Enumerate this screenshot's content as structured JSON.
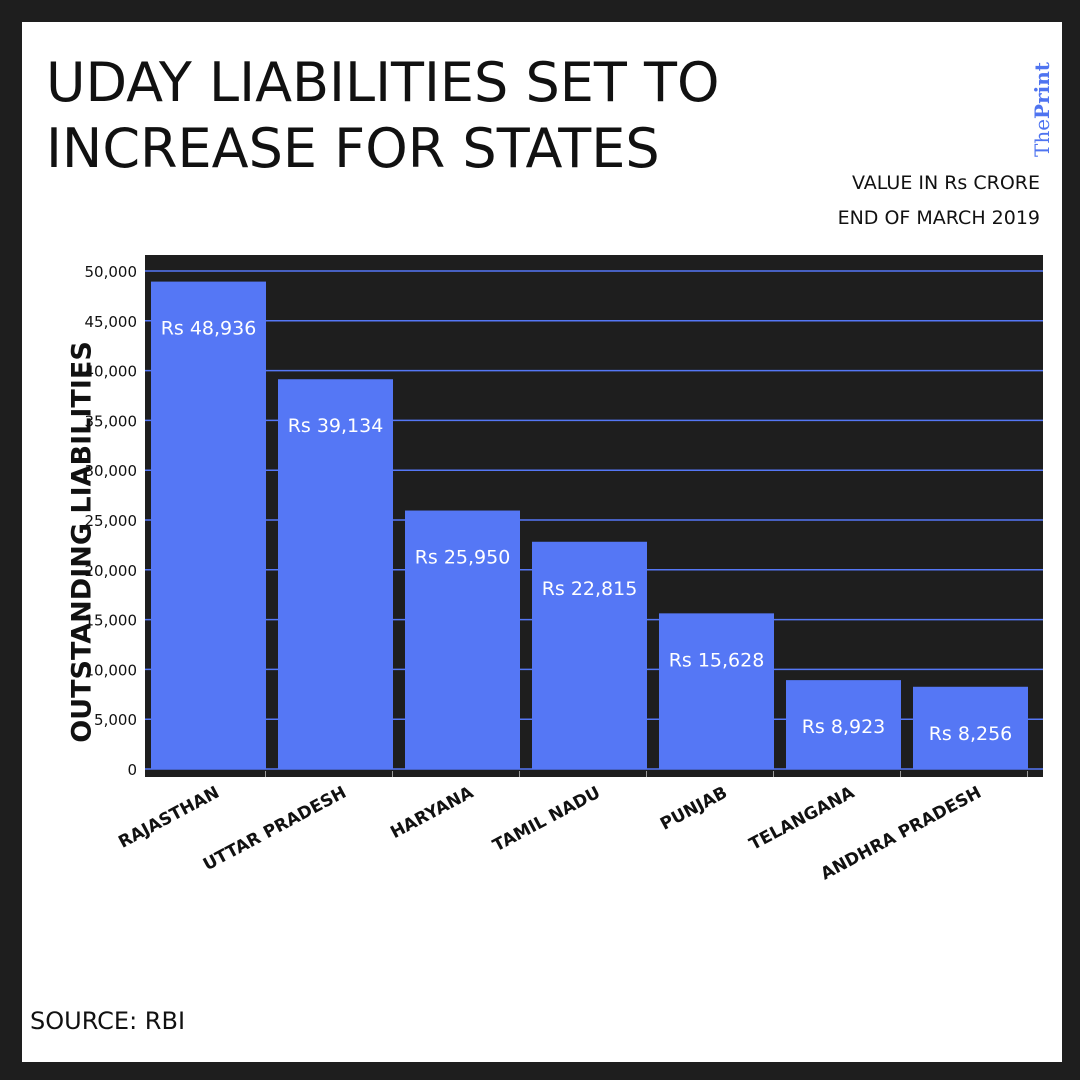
{
  "header": {
    "title": "UDAY LIABILITIES SET TO INCREASE FOR STATES",
    "brand_pre": "The",
    "brand_bold": "Print",
    "unit": "VALUE IN Rs CRORE",
    "date": "END OF MARCH 2019"
  },
  "footer": {
    "source": "SOURCE: RBI"
  },
  "chart_data": {
    "type": "bar",
    "title": "UDAY LIABILITIES SET TO INCREASE FOR STATES",
    "ylabel": "OUTSTANDING LIABILITIES",
    "xlabel": "",
    "categories": [
      "RAJASTHAN",
      "UTTAR PRADESH",
      "HARYANA",
      "TAMIL NADU",
      "PUNJAB",
      "TELANGANA",
      "ANDHRA PRADESH"
    ],
    "values": [
      48936,
      39134,
      25950,
      22815,
      15628,
      8923,
      8256
    ],
    "data_labels": [
      "Rs 48,936",
      "Rs 39,134",
      "Rs 25,950",
      "Rs 22,815",
      "Rs 15,628",
      "Rs 8,923",
      "Rs 8,256"
    ],
    "yticks": [
      0,
      5000,
      10000,
      15000,
      20000,
      25000,
      30000,
      35000,
      40000,
      45000,
      50000
    ],
    "ytick_labels": [
      "0",
      "5,000",
      "10,000",
      "15,000",
      "20,000",
      "25,000",
      "30,000",
      "35,000",
      "40,000",
      "45,000",
      "50,000"
    ],
    "ylim": [
      0,
      50000
    ],
    "grid": true,
    "colors": {
      "bar": "#5577f5",
      "plot_bg": "#1e1e1e",
      "grid": "#5577f5"
    }
  }
}
